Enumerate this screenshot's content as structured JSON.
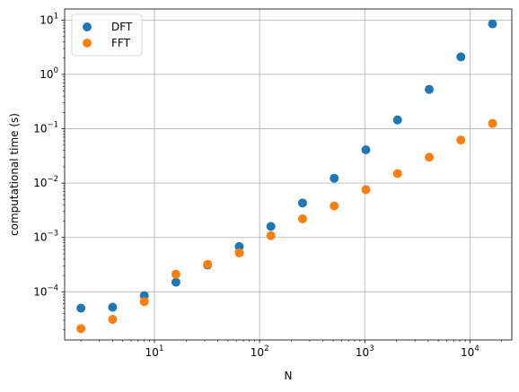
{
  "chart_data": {
    "type": "scatter",
    "xlabel": "N",
    "ylabel": "computational time (s)",
    "xscale": "log",
    "yscale": "log",
    "xlim": [
      1.4,
      25000
    ],
    "ylim": [
      1.3e-05,
      16
    ],
    "grid": true,
    "legend_position": "top-left",
    "x_ticks": [
      {
        "base": "10",
        "exp": "1",
        "value": 10
      },
      {
        "base": "10",
        "exp": "2",
        "value": 100
      },
      {
        "base": "10",
        "exp": "3",
        "value": 1000
      },
      {
        "base": "10",
        "exp": "4",
        "value": 10000
      }
    ],
    "y_ticks": [
      {
        "base": "10",
        "exp": "−4",
        "value": 0.0001
      },
      {
        "base": "10",
        "exp": "−3",
        "value": 0.001
      },
      {
        "base": "10",
        "exp": "−2",
        "value": 0.01
      },
      {
        "base": "10",
        "exp": "−1",
        "value": 0.1
      },
      {
        "base": "10",
        "exp": "0",
        "value": 1
      },
      {
        "base": "10",
        "exp": "1",
        "value": 10
      }
    ],
    "series": [
      {
        "name": "DFT",
        "color": "#1f77b4",
        "x": [
          2,
          4,
          8,
          16,
          32,
          64,
          128,
          256,
          512,
          1024,
          2048,
          4096,
          8192,
          16384
        ],
        "y": [
          5e-05,
          5.2e-05,
          8.5e-05,
          0.00015,
          0.00031,
          0.00068,
          0.0016,
          0.0043,
          0.0123,
          0.041,
          0.145,
          0.53,
          2.1,
          8.5
        ]
      },
      {
        "name": "FFT",
        "color": "#ff7f0e",
        "x": [
          2,
          4,
          8,
          16,
          32,
          64,
          128,
          256,
          512,
          1024,
          2048,
          4096,
          8192,
          16384
        ],
        "y": [
          2.1e-05,
          3.1e-05,
          6.6e-05,
          0.00021,
          0.00032,
          0.00052,
          0.00108,
          0.0022,
          0.0038,
          0.0076,
          0.015,
          0.03,
          0.062,
          0.125
        ]
      }
    ]
  }
}
